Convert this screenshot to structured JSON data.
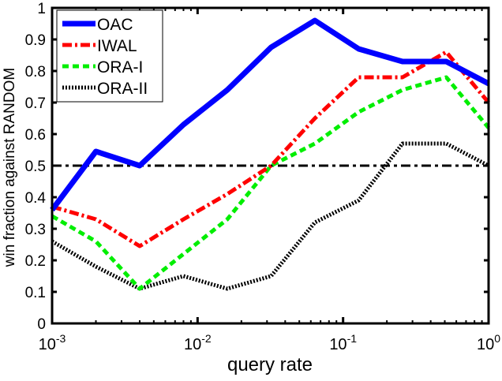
{
  "chart_data": {
    "type": "line",
    "title": "",
    "xlabel": "query rate",
    "ylabel": "win fraction against RANDOM",
    "xscale": "log",
    "xlim": [
      0.001,
      1
    ],
    "ylim": [
      0,
      1
    ],
    "grid": false,
    "legend_position": "top-left",
    "x": [
      0.001,
      0.002,
      0.004,
      0.008,
      0.016,
      0.032,
      0.064,
      0.128,
      0.256,
      0.512,
      1.0
    ],
    "xticks": [
      {
        "exp": "-3",
        "value": 0.001
      },
      {
        "exp": "-2",
        "value": 0.01
      },
      {
        "exp": "-1",
        "value": 0.1
      },
      {
        "exp": "0",
        "value": 1
      }
    ],
    "xtick_base": "10",
    "yticks": [
      "0",
      "0.1",
      "0.2",
      "0.3",
      "0.4",
      "0.5",
      "0.6",
      "0.7",
      "0.8",
      "0.9",
      "1"
    ],
    "reference_line": {
      "y": 0.5,
      "style": "dash-dot",
      "color": "#000000"
    },
    "series": [
      {
        "name": "OAC",
        "color": "#0000ff",
        "style": "solid",
        "values": [
          0.36,
          0.545,
          0.5,
          0.63,
          0.74,
          0.875,
          0.96,
          0.87,
          0.83,
          0.83,
          0.76
        ]
      },
      {
        "name": "IWAL",
        "color": "#ff0000",
        "style": "dash-dot",
        "values": [
          0.37,
          0.33,
          0.245,
          0.33,
          0.41,
          0.5,
          0.65,
          0.78,
          0.78,
          0.86,
          0.7
        ]
      },
      {
        "name": "ORA-I",
        "color": "#00ee00",
        "style": "dashed",
        "values": [
          0.34,
          0.26,
          0.11,
          0.22,
          0.33,
          0.5,
          0.57,
          0.67,
          0.74,
          0.78,
          0.62
        ]
      },
      {
        "name": "ORA-II",
        "color": "#000000",
        "style": "dotted",
        "values": [
          0.26,
          0.18,
          0.11,
          0.15,
          0.11,
          0.15,
          0.32,
          0.39,
          0.57,
          0.57,
          0.5
        ]
      }
    ]
  }
}
